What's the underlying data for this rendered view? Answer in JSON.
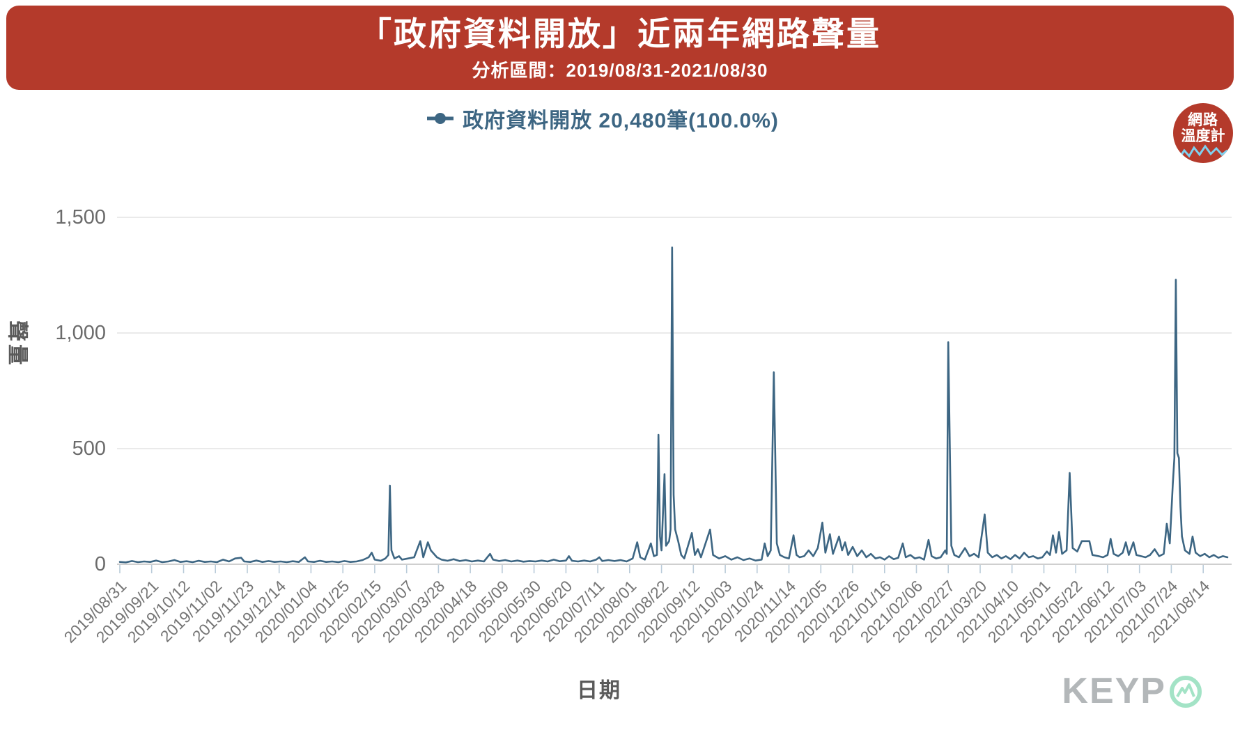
{
  "header": {
    "title": "「政府資料開放」近兩年網路聲量",
    "subtitle": "分析區間：2019/08/31-2021/08/30",
    "bg_color": "#b43a2b"
  },
  "legend": {
    "label": "政府資料開放 20,480筆(100.0%)",
    "color": "#3d6683"
  },
  "badge": {
    "line1": "網路",
    "line2": "溫度計",
    "bg_color": "#b43a2b",
    "wave_color": "#7fd1ef"
  },
  "watermark": {
    "text": "KEYP",
    "text_color": "#b3b7b9",
    "o_color": "#a3e3c6"
  },
  "chart_data": {
    "type": "line",
    "series_name": "政府資料開放",
    "total_count_label": "20,480筆(100.0%)",
    "xlabel": "日期",
    "ylabel": "聲量",
    "ylim": [
      0,
      1500
    ],
    "yticks": [
      0,
      500,
      1000,
      1500
    ],
    "ytick_labels": [
      "0",
      "500",
      "1,000",
      "1,500"
    ],
    "x_range": [
      "2019/08/31",
      "2021/08/30"
    ],
    "xtick_interval_days": 21,
    "grid": "horizontal",
    "legend_position": "top-center",
    "colors": {
      "line": "#3d6683",
      "grid": "#e4e4e4",
      "axis": "#c8c8c8",
      "tick": "#b9cbd9"
    },
    "xticks": [
      "2019/08/31",
      "2019/09/21",
      "2019/10/12",
      "2019/11/02",
      "2019/11/23",
      "2019/12/14",
      "2020/01/04",
      "2020/01/25",
      "2020/02/15",
      "2020/03/07",
      "2020/03/28",
      "2020/04/18",
      "2020/05/09",
      "2020/05/30",
      "2020/06/20",
      "2020/07/11",
      "2020/08/01",
      "2020/08/22",
      "2020/09/12",
      "2020/10/03",
      "2020/10/24",
      "2020/11/14",
      "2020/12/05",
      "2020/12/26",
      "2021/01/16",
      "2021/02/06",
      "2021/02/27",
      "2021/03/20",
      "2021/04/10",
      "2021/05/01",
      "2021/05/22",
      "2021/06/12",
      "2021/07/03",
      "2021/07/24",
      "2021/08/14"
    ],
    "points": [
      [
        "2019/08/31",
        10
      ],
      [
        "2019/09/04",
        8
      ],
      [
        "2019/09/08",
        14
      ],
      [
        "2019/09/12",
        9
      ],
      [
        "2019/09/16",
        12
      ],
      [
        "2019/09/20",
        10
      ],
      [
        "2019/09/24",
        16
      ],
      [
        "2019/09/28",
        9
      ],
      [
        "2019/10/02",
        12
      ],
      [
        "2019/10/06",
        18
      ],
      [
        "2019/10/10",
        10
      ],
      [
        "2019/10/14",
        13
      ],
      [
        "2019/10/18",
        9
      ],
      [
        "2019/10/22",
        15
      ],
      [
        "2019/10/26",
        10
      ],
      [
        "2019/10/30",
        12
      ],
      [
        "2019/11/03",
        9
      ],
      [
        "2019/11/07",
        20
      ],
      [
        "2019/11/11",
        12
      ],
      [
        "2019/11/15",
        25
      ],
      [
        "2019/11/19",
        28
      ],
      [
        "2019/11/21",
        12
      ],
      [
        "2019/11/25",
        10
      ],
      [
        "2019/11/29",
        16
      ],
      [
        "2019/12/03",
        10
      ],
      [
        "2019/12/07",
        14
      ],
      [
        "2019/12/11",
        10
      ],
      [
        "2019/12/15",
        12
      ],
      [
        "2019/12/19",
        9
      ],
      [
        "2019/12/23",
        13
      ],
      [
        "2019/12/27",
        10
      ],
      [
        "2019/12/31",
        30
      ],
      [
        "2020/01/02",
        12
      ],
      [
        "2020/01/06",
        10
      ],
      [
        "2020/01/10",
        15
      ],
      [
        "2020/01/14",
        10
      ],
      [
        "2020/01/18",
        12
      ],
      [
        "2020/01/22",
        9
      ],
      [
        "2020/01/26",
        14
      ],
      [
        "2020/01/30",
        10
      ],
      [
        "2020/02/03",
        12
      ],
      [
        "2020/02/07",
        18
      ],
      [
        "2020/02/11",
        30
      ],
      [
        "2020/02/13",
        50
      ],
      [
        "2020/02/15",
        20
      ],
      [
        "2020/02/19",
        15
      ],
      [
        "2020/02/22",
        25
      ],
      [
        "2020/02/24",
        40
      ],
      [
        "2020/02/25",
        340
      ],
      [
        "2020/02/26",
        60
      ],
      [
        "2020/02/28",
        25
      ],
      [
        "2020/03/02",
        35
      ],
      [
        "2020/03/04",
        20
      ],
      [
        "2020/03/08",
        25
      ],
      [
        "2020/03/12",
        30
      ],
      [
        "2020/03/16",
        100
      ],
      [
        "2020/03/18",
        30
      ],
      [
        "2020/03/21",
        95
      ],
      [
        "2020/03/23",
        60
      ],
      [
        "2020/03/25",
        45
      ],
      [
        "2020/03/27",
        30
      ],
      [
        "2020/03/30",
        20
      ],
      [
        "2020/04/03",
        15
      ],
      [
        "2020/04/07",
        22
      ],
      [
        "2020/04/11",
        14
      ],
      [
        "2020/04/15",
        18
      ],
      [
        "2020/04/19",
        12
      ],
      [
        "2020/04/23",
        16
      ],
      [
        "2020/04/27",
        12
      ],
      [
        "2020/05/01",
        45
      ],
      [
        "2020/05/03",
        20
      ],
      [
        "2020/05/07",
        14
      ],
      [
        "2020/05/11",
        18
      ],
      [
        "2020/05/15",
        12
      ],
      [
        "2020/05/19",
        16
      ],
      [
        "2020/05/23",
        11
      ],
      [
        "2020/05/27",
        14
      ],
      [
        "2020/05/31",
        12
      ],
      [
        "2020/06/04",
        16
      ],
      [
        "2020/06/08",
        12
      ],
      [
        "2020/06/12",
        20
      ],
      [
        "2020/06/16",
        13
      ],
      [
        "2020/06/20",
        16
      ],
      [
        "2020/06/22",
        35
      ],
      [
        "2020/06/24",
        15
      ],
      [
        "2020/06/28",
        12
      ],
      [
        "2020/07/02",
        16
      ],
      [
        "2020/07/06",
        12
      ],
      [
        "2020/07/10",
        20
      ],
      [
        "2020/07/12",
        30
      ],
      [
        "2020/07/14",
        14
      ],
      [
        "2020/07/18",
        18
      ],
      [
        "2020/07/22",
        14
      ],
      [
        "2020/07/26",
        18
      ],
      [
        "2020/07/30",
        12
      ],
      [
        "2020/08/03",
        25
      ],
      [
        "2020/08/06",
        95
      ],
      [
        "2020/08/08",
        30
      ],
      [
        "2020/08/11",
        20
      ],
      [
        "2020/08/15",
        90
      ],
      [
        "2020/08/17",
        35
      ],
      [
        "2020/08/19",
        40
      ],
      [
        "2020/08/20",
        560
      ],
      [
        "2020/08/21",
        120
      ],
      [
        "2020/08/22",
        60
      ],
      [
        "2020/08/24",
        390
      ],
      [
        "2020/08/25",
        80
      ],
      [
        "2020/08/27",
        100
      ],
      [
        "2020/08/28",
        150
      ],
      [
        "2020/08/29",
        1370
      ],
      [
        "2020/08/30",
        300
      ],
      [
        "2020/08/31",
        150
      ],
      [
        "2020/09/02",
        100
      ],
      [
        "2020/09/04",
        40
      ],
      [
        "2020/09/06",
        25
      ],
      [
        "2020/09/11",
        135
      ],
      [
        "2020/09/13",
        40
      ],
      [
        "2020/09/15",
        65
      ],
      [
        "2020/09/17",
        30
      ],
      [
        "2020/09/23",
        150
      ],
      [
        "2020/09/25",
        40
      ],
      [
        "2020/09/29",
        25
      ],
      [
        "2020/10/03",
        35
      ],
      [
        "2020/10/07",
        20
      ],
      [
        "2020/10/11",
        30
      ],
      [
        "2020/10/15",
        18
      ],
      [
        "2020/10/19",
        25
      ],
      [
        "2020/10/23",
        16
      ],
      [
        "2020/10/27",
        20
      ],
      [
        "2020/10/29",
        90
      ],
      [
        "2020/10/31",
        35
      ],
      [
        "2020/11/02",
        60
      ],
      [
        "2020/11/04",
        830
      ],
      [
        "2020/11/06",
        90
      ],
      [
        "2020/11/08",
        40
      ],
      [
        "2020/11/11",
        30
      ],
      [
        "2020/11/14",
        25
      ],
      [
        "2020/11/17",
        125
      ],
      [
        "2020/11/19",
        40
      ],
      [
        "2020/11/21",
        30
      ],
      [
        "2020/11/24",
        35
      ],
      [
        "2020/11/27",
        60
      ],
      [
        "2020/11/30",
        35
      ],
      [
        "2020/12/03",
        70
      ],
      [
        "2020/12/06",
        180
      ],
      [
        "2020/12/08",
        50
      ],
      [
        "2020/12/11",
        130
      ],
      [
        "2020/12/13",
        45
      ],
      [
        "2020/12/17",
        120
      ],
      [
        "2020/12/19",
        60
      ],
      [
        "2020/12/21",
        95
      ],
      [
        "2020/12/23",
        40
      ],
      [
        "2020/12/26",
        75
      ],
      [
        "2020/12/29",
        35
      ],
      [
        "2021/01/01",
        60
      ],
      [
        "2021/01/04",
        30
      ],
      [
        "2021/01/07",
        45
      ],
      [
        "2021/01/10",
        25
      ],
      [
        "2021/01/13",
        30
      ],
      [
        "2021/01/16",
        20
      ],
      [
        "2021/01/19",
        35
      ],
      [
        "2021/01/22",
        22
      ],
      [
        "2021/01/25",
        28
      ],
      [
        "2021/01/28",
        90
      ],
      [
        "2021/01/30",
        30
      ],
      [
        "2021/02/02",
        40
      ],
      [
        "2021/02/05",
        25
      ],
      [
        "2021/02/08",
        30
      ],
      [
        "2021/02/11",
        20
      ],
      [
        "2021/02/14",
        105
      ],
      [
        "2021/02/16",
        35
      ],
      [
        "2021/02/19",
        25
      ],
      [
        "2021/02/22",
        30
      ],
      [
        "2021/02/25",
        60
      ],
      [
        "2021/02/26",
        45
      ],
      [
        "2021/02/27",
        960
      ],
      [
        "2021/03/01",
        80
      ],
      [
        "2021/03/03",
        40
      ],
      [
        "2021/03/06",
        30
      ],
      [
        "2021/03/10",
        70
      ],
      [
        "2021/03/13",
        35
      ],
      [
        "2021/03/16",
        45
      ],
      [
        "2021/03/19",
        30
      ],
      [
        "2021/03/23",
        215
      ],
      [
        "2021/03/25",
        50
      ],
      [
        "2021/03/28",
        30
      ],
      [
        "2021/03/31",
        40
      ],
      [
        "2021/04/03",
        25
      ],
      [
        "2021/04/06",
        35
      ],
      [
        "2021/04/09",
        22
      ],
      [
        "2021/04/12",
        40
      ],
      [
        "2021/04/15",
        25
      ],
      [
        "2021/04/18",
        50
      ],
      [
        "2021/04/21",
        30
      ],
      [
        "2021/04/24",
        35
      ],
      [
        "2021/04/27",
        25
      ],
      [
        "2021/04/30",
        30
      ],
      [
        "2021/05/03",
        55
      ],
      [
        "2021/05/05",
        40
      ],
      [
        "2021/05/07",
        125
      ],
      [
        "2021/05/09",
        50
      ],
      [
        "2021/05/11",
        140
      ],
      [
        "2021/05/13",
        45
      ],
      [
        "2021/05/16",
        60
      ],
      [
        "2021/05/18",
        395
      ],
      [
        "2021/05/20",
        70
      ],
      [
        "2021/05/23",
        55
      ],
      [
        "2021/05/26",
        100
      ],
      [
        "2021/05/31",
        100
      ],
      [
        "2021/06/02",
        40
      ],
      [
        "2021/06/06",
        35
      ],
      [
        "2021/06/09",
        30
      ],
      [
        "2021/06/12",
        40
      ],
      [
        "2021/06/14",
        110
      ],
      [
        "2021/06/16",
        45
      ],
      [
        "2021/06/19",
        35
      ],
      [
        "2021/06/22",
        50
      ],
      [
        "2021/06/24",
        95
      ],
      [
        "2021/06/26",
        40
      ],
      [
        "2021/06/29",
        95
      ],
      [
        "2021/07/01",
        40
      ],
      [
        "2021/07/04",
        35
      ],
      [
        "2021/07/07",
        30
      ],
      [
        "2021/07/10",
        40
      ],
      [
        "2021/07/13",
        65
      ],
      [
        "2021/07/16",
        35
      ],
      [
        "2021/07/19",
        45
      ],
      [
        "2021/07/21",
        175
      ],
      [
        "2021/07/23",
        90
      ],
      [
        "2021/07/25",
        350
      ],
      [
        "2021/07/26",
        460
      ],
      [
        "2021/07/27",
        1230
      ],
      [
        "2021/07/28",
        480
      ],
      [
        "2021/07/29",
        460
      ],
      [
        "2021/07/30",
        250
      ],
      [
        "2021/07/31",
        120
      ],
      [
        "2021/08/02",
        60
      ],
      [
        "2021/08/05",
        45
      ],
      [
        "2021/08/07",
        120
      ],
      [
        "2021/08/09",
        50
      ],
      [
        "2021/08/12",
        35
      ],
      [
        "2021/08/15",
        45
      ],
      [
        "2021/08/18",
        30
      ],
      [
        "2021/08/21",
        40
      ],
      [
        "2021/08/24",
        28
      ],
      [
        "2021/08/27",
        35
      ],
      [
        "2021/08/30",
        30
      ]
    ]
  }
}
